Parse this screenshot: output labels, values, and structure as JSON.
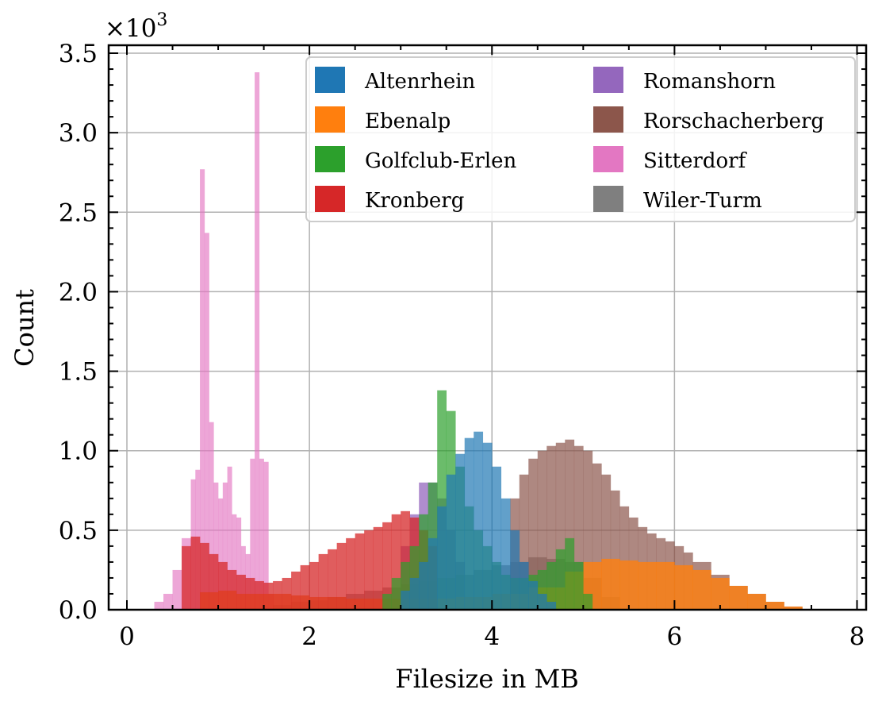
{
  "chart_data": {
    "type": "bar",
    "subtype": "overlapping-histogram",
    "title": "",
    "xlabel": "Filesize in MB",
    "ylabel": "Count",
    "y_multiplier_label": "×10",
    "y_multiplier_exp": "3",
    "xlim": [
      -0.2,
      8.1
    ],
    "ylim": [
      0,
      3.55
    ],
    "xticks": [
      0,
      2,
      4,
      6,
      8
    ],
    "xtick_labels": [
      "0",
      "2",
      "4",
      "6",
      "8"
    ],
    "yticks": [
      0,
      0.5,
      1.0,
      1.5,
      2.0,
      2.5,
      3.0,
      3.5
    ],
    "ytick_labels": [
      "0.0",
      "0.5",
      "1.0",
      "1.5",
      "2.0",
      "2.5",
      "3.0",
      "3.5"
    ],
    "grid": true,
    "legend_position": "top-right",
    "legend_columns": 2,
    "draw_order": [
      "Romanshorn",
      "Wiler-Turm",
      "Sitterdorf",
      "Rorschacherberg",
      "Ebenalp",
      "Kronberg",
      "Golfclub-Erlen",
      "Altenrhein"
    ],
    "series": [
      {
        "name": "Altenrhein",
        "color": "#1f77b4",
        "opacity": 0.7,
        "x": [
          3.0,
          3.1,
          3.2,
          3.3,
          3.4,
          3.5,
          3.6,
          3.7,
          3.8,
          3.9,
          4.0,
          4.1,
          4.2,
          4.3,
          4.4,
          4.5,
          4.6
        ],
        "y": [
          0.12,
          0.2,
          0.3,
          0.45,
          0.65,
          0.85,
          0.98,
          1.08,
          1.12,
          1.05,
          0.9,
          0.7,
          0.5,
          0.3,
          0.18,
          0.1,
          0.05
        ]
      },
      {
        "name": "Ebenalp",
        "color": "#ff7f0e",
        "opacity": 0.8,
        "x": [
          0.8,
          1.0,
          1.2,
          1.4,
          1.6,
          1.8,
          2.0,
          2.4,
          2.8,
          3.2,
          3.6,
          4.0,
          4.4,
          4.8,
          5.0,
          5.2,
          5.4,
          5.6,
          5.8,
          6.0,
          6.2,
          6.4,
          6.6,
          6.8,
          7.0,
          7.2
        ],
        "y": [
          0.11,
          0.12,
          0.1,
          0.1,
          0.1,
          0.09,
          0.08,
          0.07,
          0.07,
          0.07,
          0.08,
          0.1,
          0.14,
          0.24,
          0.3,
          0.32,
          0.31,
          0.3,
          0.3,
          0.28,
          0.25,
          0.2,
          0.15,
          0.1,
          0.05,
          0.02
        ]
      },
      {
        "name": "Golfclub-Erlen",
        "color": "#2ca02c",
        "opacity": 0.7,
        "x": [
          2.8,
          2.9,
          3.0,
          3.1,
          3.2,
          3.3,
          3.4,
          3.5,
          3.6,
          3.7,
          3.8,
          3.9,
          4.0,
          4.1,
          4.2,
          4.3,
          4.4,
          4.5,
          4.6,
          4.7,
          4.8,
          4.9,
          5.0
        ],
        "y": [
          0.1,
          0.2,
          0.3,
          0.4,
          0.6,
          0.8,
          1.38,
          1.25,
          0.9,
          0.65,
          0.5,
          0.4,
          0.3,
          0.22,
          0.2,
          0.2,
          0.22,
          0.25,
          0.3,
          0.38,
          0.45,
          0.3,
          0.1
        ]
      },
      {
        "name": "Kronberg",
        "color": "#d62728",
        "opacity": 0.75,
        "x": [
          0.6,
          0.7,
          0.8,
          0.9,
          1.0,
          1.1,
          1.2,
          1.3,
          1.4,
          1.5,
          1.6,
          1.7,
          1.8,
          1.9,
          2.0,
          2.1,
          2.2,
          2.3,
          2.4,
          2.5,
          2.6,
          2.7,
          2.8,
          2.9,
          3.0,
          3.1,
          3.2,
          3.3
        ],
        "y": [
          0.4,
          0.46,
          0.42,
          0.35,
          0.3,
          0.25,
          0.22,
          0.2,
          0.18,
          0.17,
          0.18,
          0.2,
          0.24,
          0.28,
          0.3,
          0.35,
          0.38,
          0.42,
          0.45,
          0.48,
          0.5,
          0.52,
          0.55,
          0.6,
          0.62,
          0.58,
          0.5,
          0.4
        ]
      },
      {
        "name": "Romanshorn",
        "color": "#9467bd",
        "opacity": 0.75,
        "x": [
          3.0,
          3.1,
          3.2,
          3.3,
          3.4,
          3.5,
          3.6
        ],
        "y": [
          0.4,
          0.6,
          0.8,
          0.8,
          0.7,
          0.5,
          0.3
        ]
      },
      {
        "name": "Rorschacherberg",
        "color": "#8c564b",
        "opacity": 0.7,
        "x": [
          4.2,
          4.3,
          4.4,
          4.5,
          4.6,
          4.7,
          4.8,
          4.9,
          5.0,
          5.1,
          5.2,
          5.3,
          5.4,
          5.5,
          5.6,
          5.7,
          5.8,
          5.9,
          6.0,
          6.1,
          6.2,
          6.4,
          6.6,
          6.8,
          7.0,
          7.2
        ],
        "y": [
          0.7,
          0.85,
          0.95,
          1.0,
          1.03,
          1.05,
          1.07,
          1.03,
          1.0,
          0.92,
          0.85,
          0.75,
          0.65,
          0.58,
          0.52,
          0.48,
          0.45,
          0.43,
          0.4,
          0.36,
          0.3,
          0.22,
          0.15,
          0.1,
          0.05,
          0.02
        ]
      },
      {
        "name": "Sitterdorf",
        "color": "#e377c2",
        "opacity": 0.65,
        "x": [
          0.3,
          0.4,
          0.5,
          0.6,
          0.7,
          0.75,
          0.8,
          0.85,
          0.9,
          0.95,
          1.0,
          1.05,
          1.1,
          1.15,
          1.2,
          1.25,
          1.3,
          1.35,
          1.4,
          1.45,
          1.5,
          1.55
        ],
        "y": [
          0.05,
          0.1,
          0.25,
          0.45,
          0.82,
          0.88,
          2.77,
          2.37,
          1.18,
          0.8,
          0.7,
          0.8,
          0.9,
          0.6,
          0.58,
          0.4,
          0.35,
          0.95,
          3.38,
          0.95,
          0.93,
          0.1
        ]
      },
      {
        "name": "Wiler-Turm",
        "color": "#7f7f7f",
        "opacity": 0.7,
        "x": [
          1.6,
          1.8,
          2.0,
          2.2,
          2.4,
          2.6,
          2.8,
          3.0,
          3.2,
          3.4,
          3.6,
          3.8,
          4.0,
          4.2,
          4.4,
          4.6,
          4.8,
          5.0,
          5.2
        ],
        "y": [
          0.03,
          0.05,
          0.06,
          0.08,
          0.1,
          0.12,
          0.14,
          0.16,
          0.18,
          0.2,
          0.22,
          0.25,
          0.28,
          0.3,
          0.33,
          0.32,
          0.3,
          0.2,
          0.08
        ]
      }
    ]
  }
}
